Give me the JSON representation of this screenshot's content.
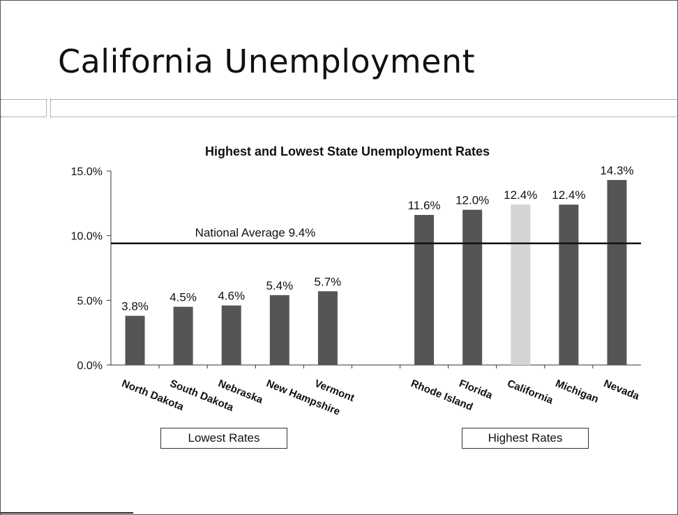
{
  "slide": {
    "title": "California Unemployment"
  },
  "chart_data": {
    "type": "bar",
    "title": "Highest and Lowest State Unemployment Rates",
    "xlabel": "",
    "ylabel": "",
    "ylim": [
      0,
      15
    ],
    "yticks": [
      "0.0%",
      "5.0%",
      "10.0%",
      "15.0%"
    ],
    "categories": [
      "North Dakota",
      "South Dakota",
      "Nebraska",
      "New Hampshire",
      "Vermont",
      "",
      "Rhode Island",
      "Florida",
      "California",
      "Michigan",
      "Nevada"
    ],
    "values": [
      3.8,
      4.5,
      4.6,
      5.4,
      5.7,
      null,
      11.6,
      12.0,
      12.4,
      12.4,
      14.3
    ],
    "data_labels": [
      "3.8%",
      "4.5%",
      "4.6%",
      "5.4%",
      "5.7%",
      "",
      "11.6%",
      "12.0%",
      "12.4%",
      "12.4%",
      "14.3%"
    ],
    "highlight_category": "California",
    "colors": {
      "bar": "#555555",
      "highlight": "#d4d4d4",
      "reference_line": "#111111"
    },
    "reference_line": {
      "value": 9.4,
      "label": "National Average 9.4%"
    },
    "groups": [
      {
        "label": "Lowest Rates"
      },
      {
        "label": "Highest Rates"
      }
    ],
    "grid": false,
    "legend": "none"
  }
}
